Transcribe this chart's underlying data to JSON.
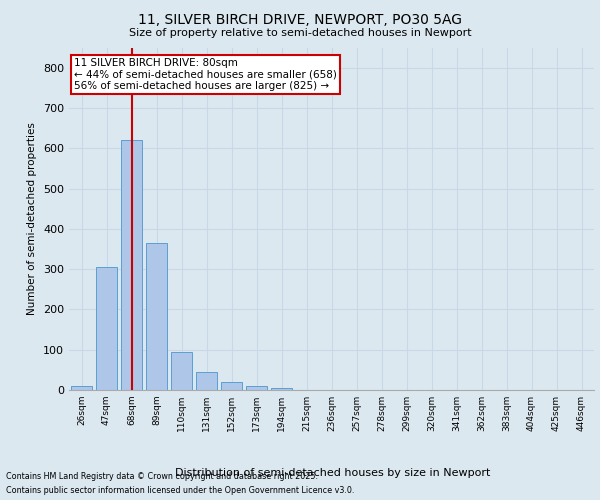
{
  "title_line1": "11, SILVER BIRCH DRIVE, NEWPORT, PO30 5AG",
  "title_line2": "Size of property relative to semi-detached houses in Newport",
  "xlabel": "Distribution of semi-detached houses by size in Newport",
  "ylabel": "Number of semi-detached properties",
  "categories": [
    "26sqm",
    "47sqm",
    "68sqm",
    "89sqm",
    "110sqm",
    "131sqm",
    "152sqm",
    "173sqm",
    "194sqm",
    "215sqm",
    "236sqm",
    "257sqm",
    "278sqm",
    "299sqm",
    "320sqm",
    "341sqm",
    "362sqm",
    "383sqm",
    "404sqm",
    "425sqm",
    "446sqm"
  ],
  "values": [
    10,
    305,
    620,
    365,
    95,
    45,
    20,
    10,
    5,
    0,
    0,
    0,
    0,
    0,
    0,
    0,
    0,
    0,
    0,
    0,
    0
  ],
  "bar_color": "#aec6e8",
  "bar_edge_color": "#5a9fd4",
  "grid_color": "#c8d8e8",
  "background_color": "#dce8f0",
  "plot_bg_color": "#dce8f0",
  "annotation_text": "11 SILVER BIRCH DRIVE: 80sqm\n← 44% of semi-detached houses are smaller (658)\n56% of semi-detached houses are larger (825) →",
  "annotation_box_color": "#ffffff",
  "annotation_box_edge": "#cc0000",
  "vline_x": 2.0,
  "vline_color": "#cc0000",
  "ylim": [
    0,
    850
  ],
  "yticks": [
    0,
    100,
    200,
    300,
    400,
    500,
    600,
    700,
    800
  ],
  "footer_line1": "Contains HM Land Registry data © Crown copyright and database right 2025.",
  "footer_line2": "Contains public sector information licensed under the Open Government Licence v3.0."
}
